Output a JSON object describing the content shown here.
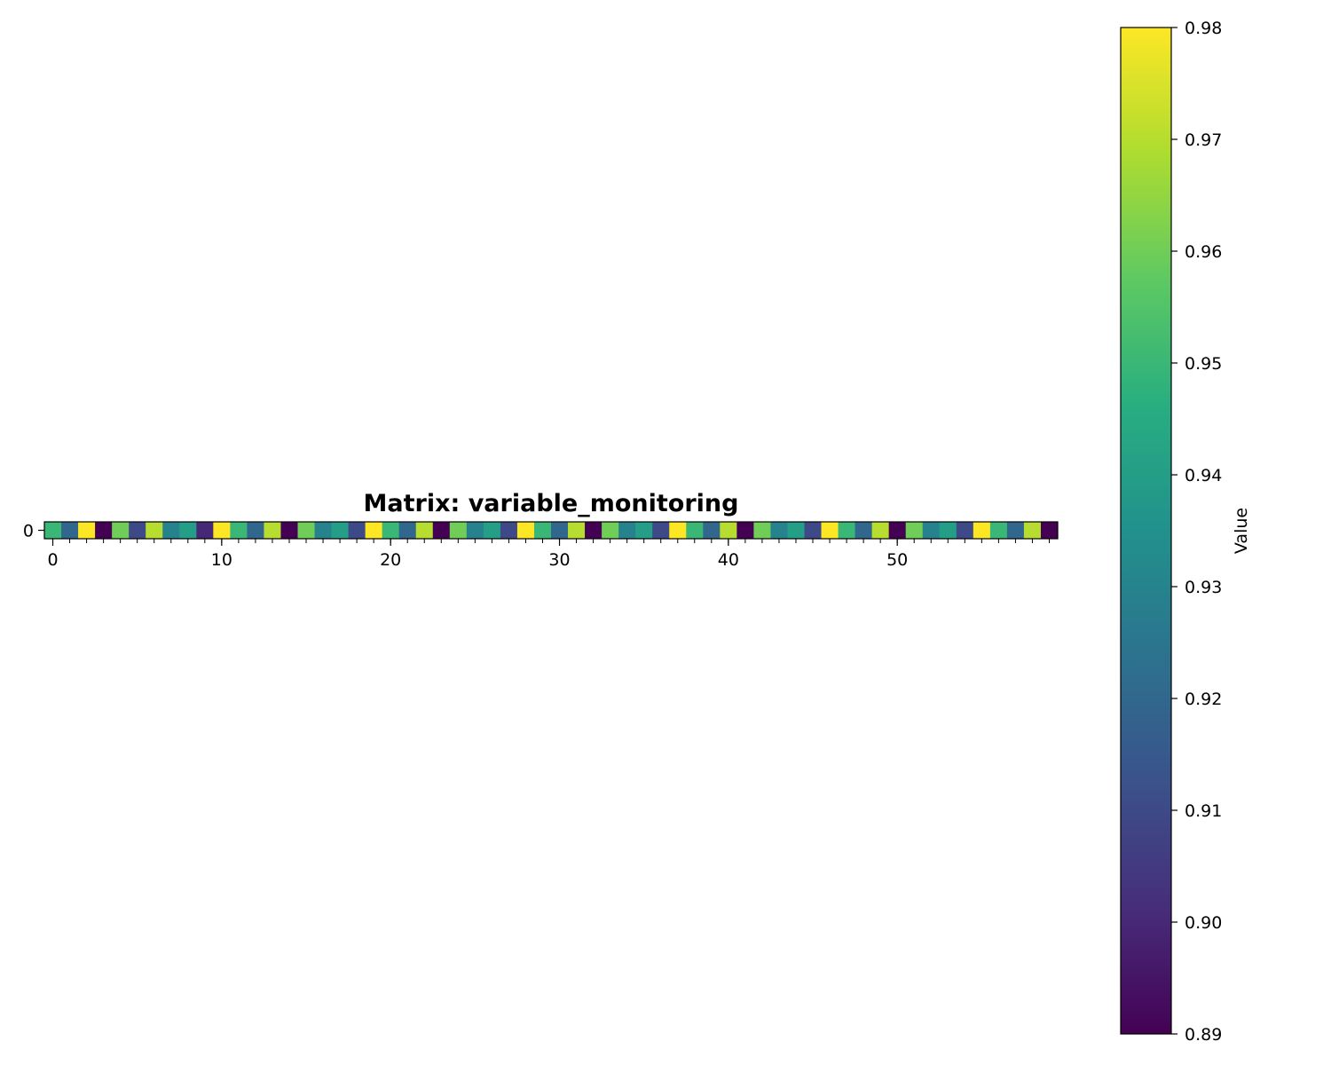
{
  "chart_data": {
    "type": "heatmap",
    "title": "Matrix: variable_monitoring",
    "rows": 1,
    "cols": 60,
    "values": [
      [
        0.95,
        0.92,
        0.98,
        0.89,
        0.96,
        0.91,
        0.97,
        0.93,
        0.94,
        0.9,
        0.98,
        0.95,
        0.92,
        0.97,
        0.89,
        0.96,
        0.93,
        0.94,
        0.91,
        0.98,
        0.95,
        0.92,
        0.97,
        0.89,
        0.96,
        0.93,
        0.94,
        0.91,
        0.98,
        0.95,
        0.92,
        0.97,
        0.89,
        0.96,
        0.93,
        0.94,
        0.91,
        0.98,
        0.95,
        0.92,
        0.97,
        0.89,
        0.96,
        0.93,
        0.94,
        0.91,
        0.98,
        0.95,
        0.92,
        0.97,
        0.89,
        0.96,
        0.93,
        0.94,
        0.91,
        0.98,
        0.95,
        0.92,
        0.97,
        0.89
      ]
    ],
    "x_ticks": [
      0,
      10,
      20,
      30,
      40,
      50
    ],
    "y_ticks": [
      0
    ],
    "colormap": "viridis",
    "colorbar": {
      "label": "Value",
      "range": [
        0.89,
        0.98
      ],
      "ticks": [
        "0.89",
        "0.90",
        "0.91",
        "0.92",
        "0.93",
        "0.94",
        "0.95",
        "0.96",
        "0.97",
        "0.98"
      ]
    },
    "grid": false
  }
}
